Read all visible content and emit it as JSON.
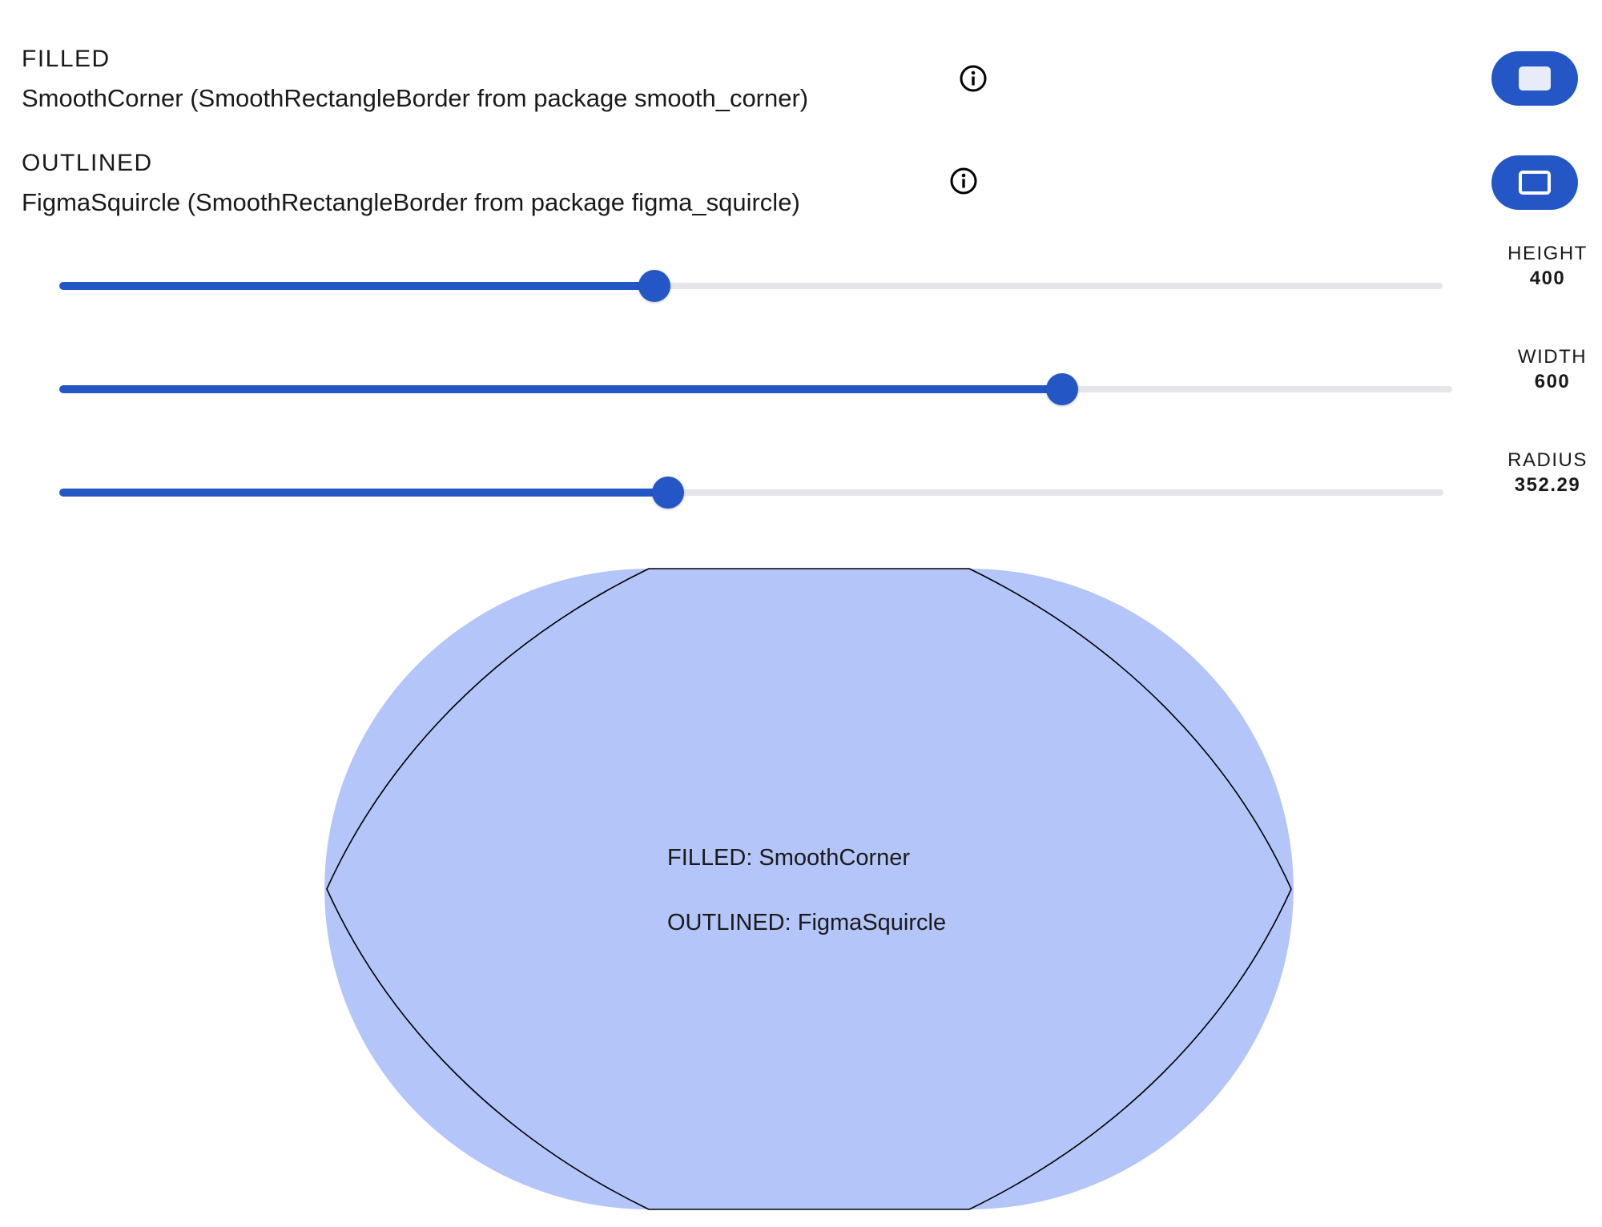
{
  "options": {
    "filled": {
      "label": "FILLED",
      "description": "SmoothCorner (SmoothRectangleBorder from package smooth_corner)",
      "info_icon": "info-icon",
      "button_icon": "filled-rectangle-icon"
    },
    "outlined": {
      "label": "OUTLINED",
      "description": "FigmaSquircle (SmoothRectangleBorder from package figma_squircle)",
      "info_icon": "info-icon",
      "button_icon": "outlined-rectangle-icon"
    }
  },
  "sliders": {
    "height": {
      "label": "HEIGHT",
      "value": "400",
      "position": 0.43
    },
    "width": {
      "label": "WIDTH",
      "value": "600",
      "position": 0.72
    },
    "radius": {
      "label": "RADIUS",
      "value": "352.29",
      "position": 0.44
    }
  },
  "preview": {
    "filled_text": "FILLED: SmoothCorner",
    "outlined_text": "OUTLINED: FigmaSquircle",
    "fill_color": "#b3c5f9",
    "outline_color": "#000000"
  },
  "colors": {
    "accent": "#2457c5",
    "track": "#e5e5ea",
    "thumb": "#2457c5"
  }
}
